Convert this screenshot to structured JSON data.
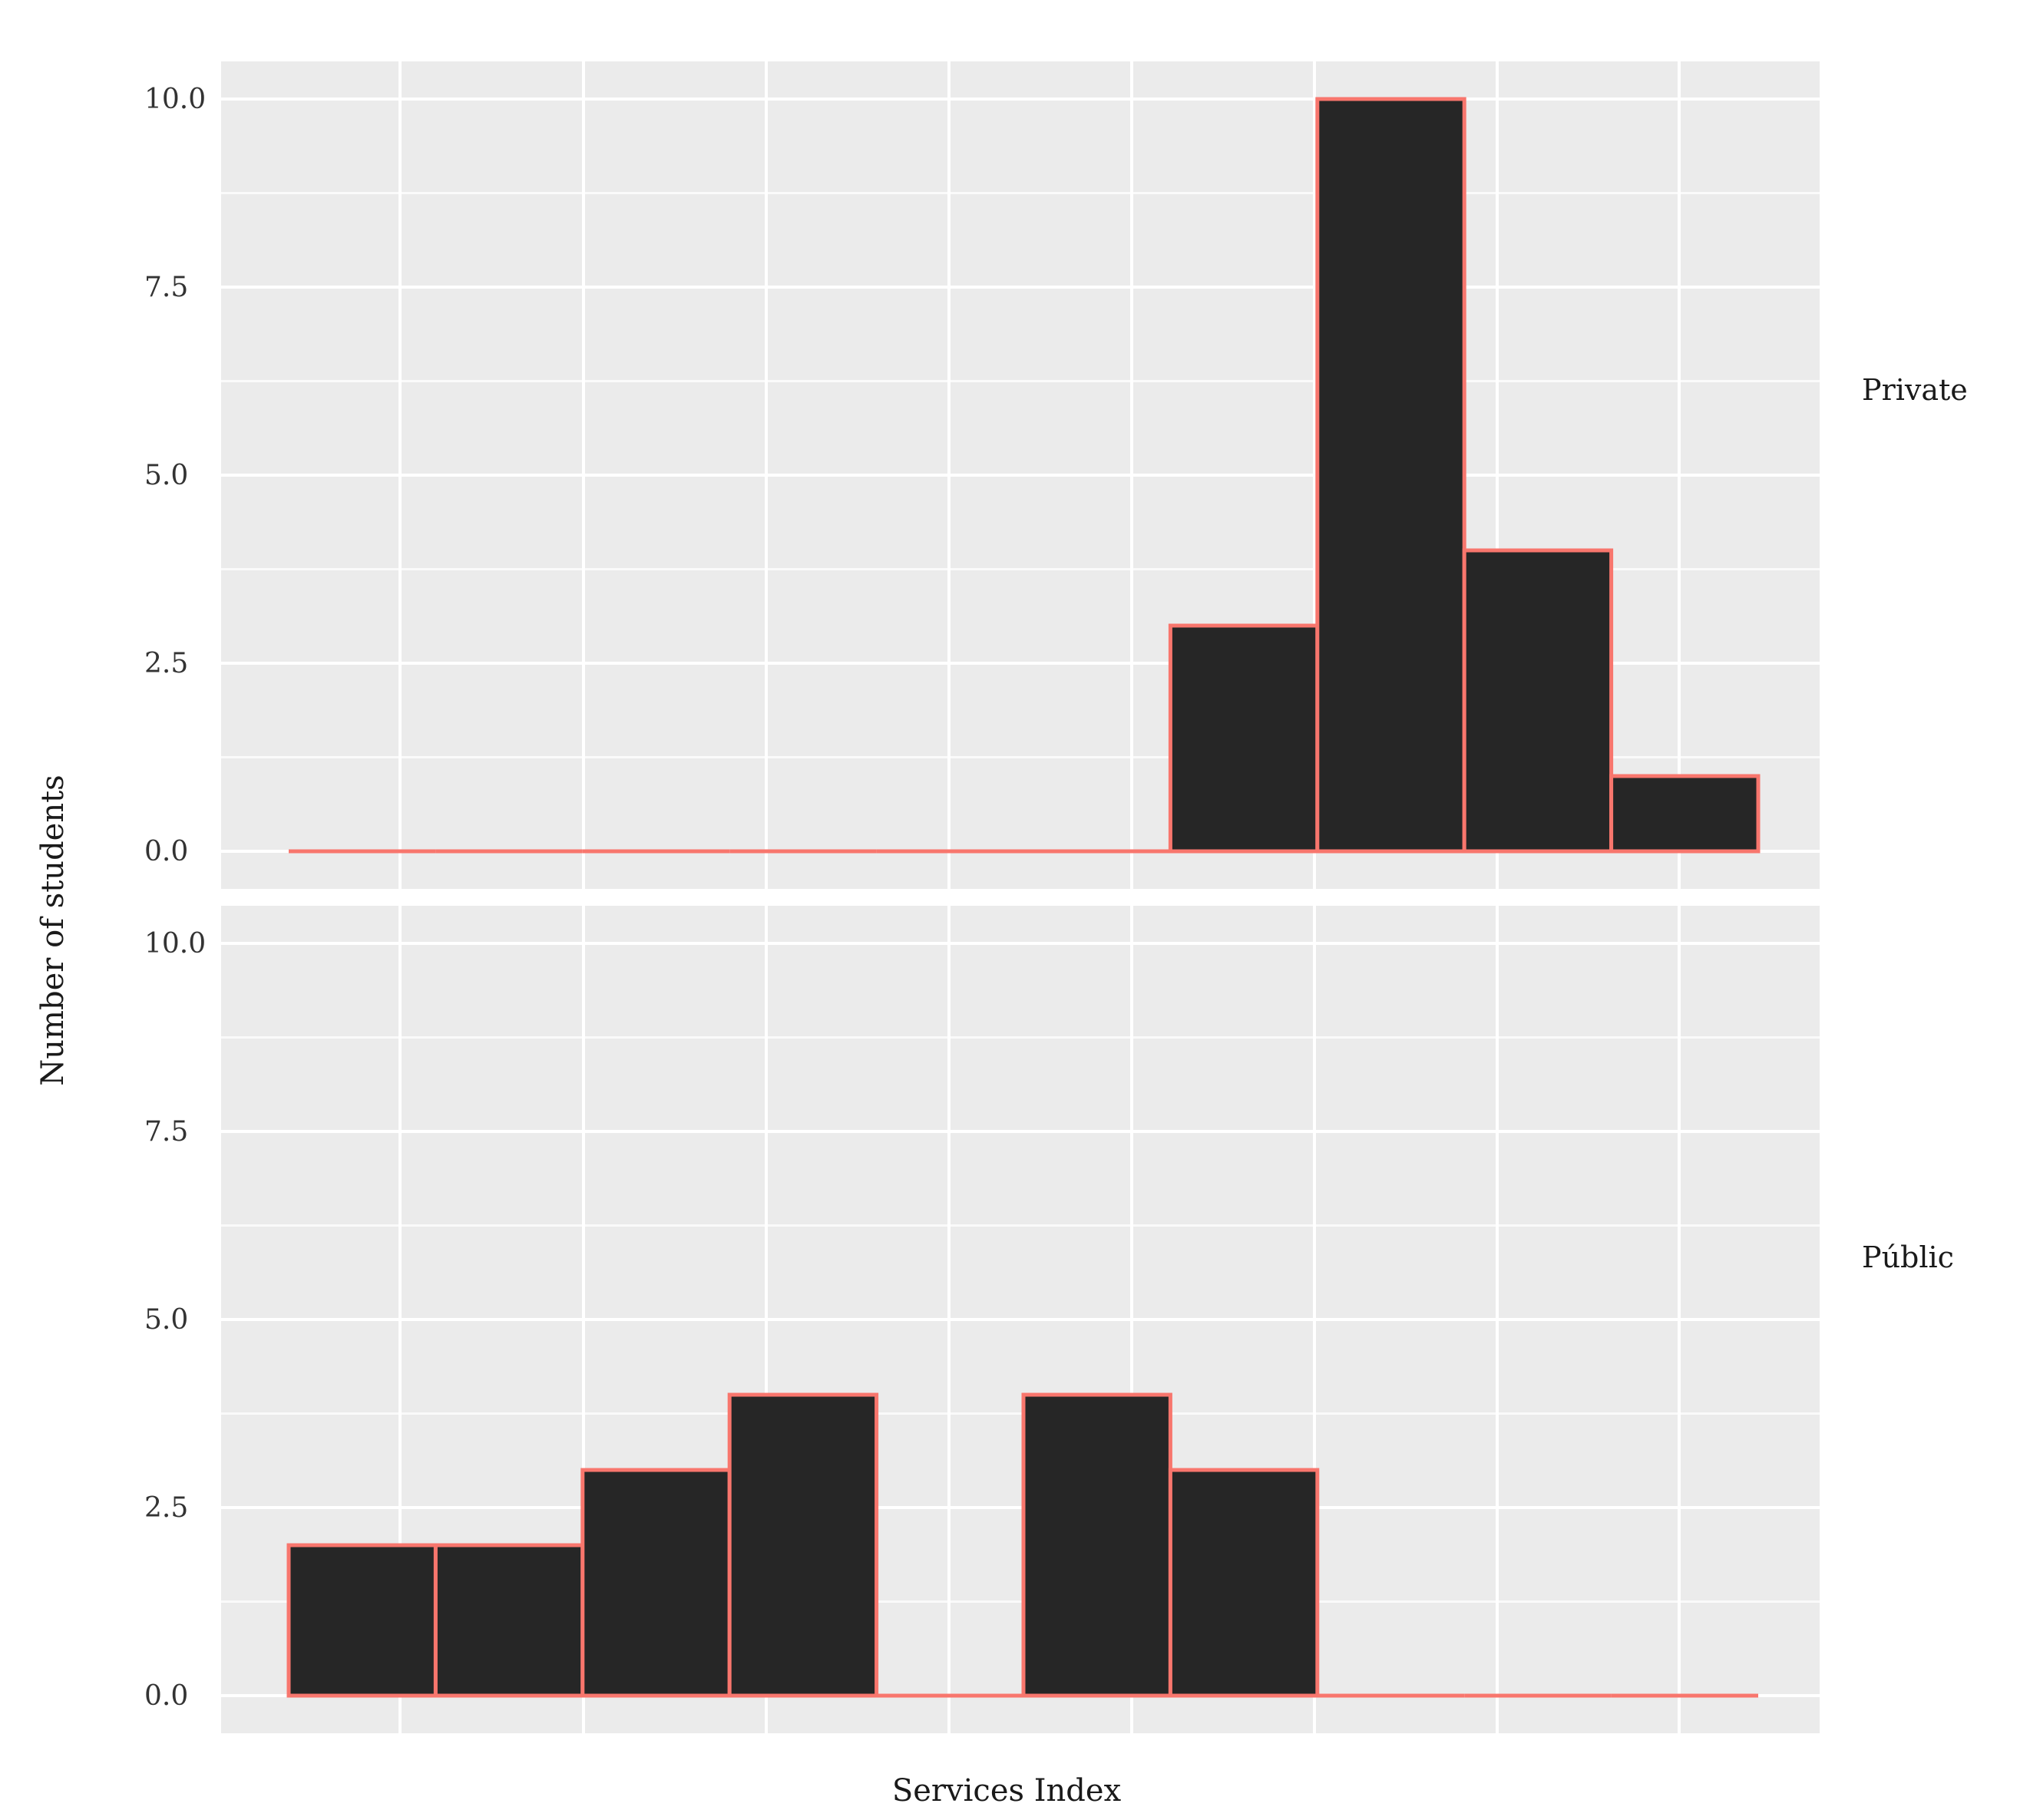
{
  "chart_data": {
    "type": "histogram",
    "xlabel": "Services Index",
    "ylabel": "Number of students",
    "ylim": [
      -0.5,
      10.5
    ],
    "y_ticks": [
      0.0,
      2.5,
      5.0,
      7.5,
      10.0
    ],
    "y_tick_labels": [
      "0.0",
      "2.5",
      "5.0",
      "7.5",
      "10.0"
    ],
    "x_tick_labels_shown": false,
    "bin_count": 10,
    "fill_color": "#262626",
    "outline_color": "#F8766D",
    "panel_background": "#EBEBEB",
    "grid_color": "#FFFFFF",
    "grid": true,
    "facets": [
      {
        "label": "Private",
        "counts": [
          0,
          0,
          0,
          0,
          0,
          0,
          3,
          10,
          4,
          1
        ]
      },
      {
        "label": "Públic",
        "counts": [
          2,
          2,
          3,
          4,
          0,
          4,
          3,
          0,
          0,
          0
        ]
      }
    ]
  }
}
